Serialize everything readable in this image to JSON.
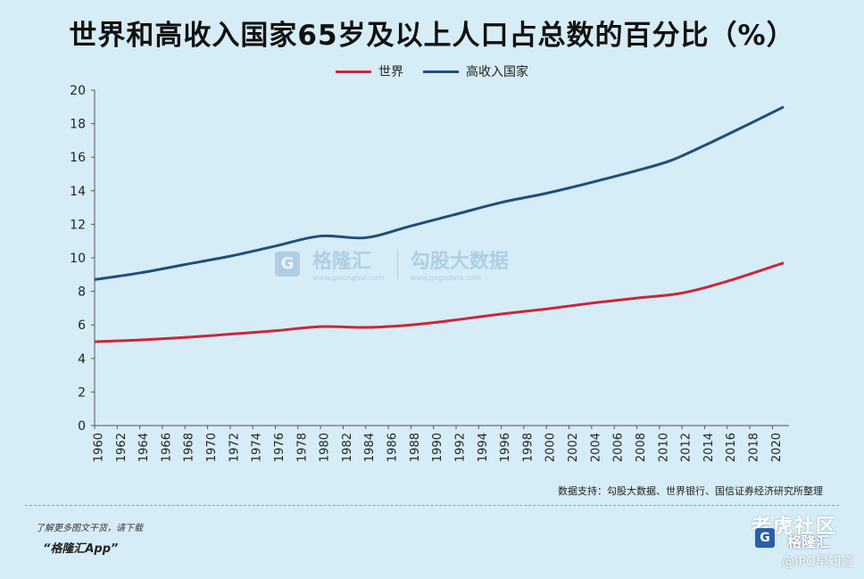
{
  "title": "世界和高收入国家65岁及以上人口占总数的百分比（%）",
  "source": "数据支持：勾股大数据、世界银行、国信证券经济研究所整理",
  "footer": {
    "hint": "了解更多图文干货，请下载",
    "app": "“格隆汇App”"
  },
  "watermarks": {
    "center_brand": "格隆汇",
    "center_brand_url": "www.gelonghui.com",
    "center_data": "勾股大数据",
    "center_data_url": "www.gogudata.com",
    "community": "老虎社区",
    "logo": "格隆汇",
    "ipo": "@IPO早知道"
  },
  "colors": {
    "world": "#c8283a",
    "high_income": "#1f4e79",
    "background": "#d6ecf7"
  },
  "chart_data": {
    "type": "line",
    "title": "世界和高收入国家65岁及以上人口占总数的百分比（%）",
    "xlabel": "",
    "ylabel": "",
    "ylim": [
      0,
      20
    ],
    "yticks": [
      "0",
      "2",
      "4",
      "6",
      "8",
      "10",
      "12",
      "14",
      "16",
      "18",
      "20"
    ],
    "xlim": [
      1960,
      2021
    ],
    "xticks": [
      "1960",
      "1962",
      "1964",
      "1966",
      "1968",
      "1970",
      "1972",
      "1974",
      "1976",
      "1978",
      "1980",
      "1982",
      "1984",
      "1986",
      "1988",
      "1990",
      "1992",
      "1994",
      "1996",
      "1998",
      "2000",
      "2002",
      "2004",
      "2006",
      "2008",
      "2010",
      "2012",
      "2014",
      "2016",
      "2018",
      "2020"
    ],
    "grid": false,
    "legend_position": "top-center",
    "series": [
      {
        "name": "世界",
        "x": [
          1960,
          1964,
          1968,
          1972,
          1976,
          1980,
          1984,
          1988,
          1992,
          1996,
          2000,
          2004,
          2008,
          2012,
          2016,
          2021
        ],
        "values": [
          5.0,
          5.1,
          5.25,
          5.45,
          5.65,
          5.9,
          5.85,
          6.0,
          6.3,
          6.65,
          6.95,
          7.3,
          7.6,
          7.9,
          8.6,
          9.7
        ]
      },
      {
        "name": "高收入国家",
        "x": [
          1960,
          1964,
          1968,
          1972,
          1976,
          1980,
          1984,
          1988,
          1992,
          1996,
          2000,
          2004,
          2008,
          2011,
          2014,
          2018,
          2021
        ],
        "values": [
          8.7,
          9.1,
          9.6,
          10.1,
          10.7,
          11.3,
          11.2,
          11.9,
          12.6,
          13.3,
          13.85,
          14.5,
          15.2,
          15.8,
          16.7,
          18.0,
          19.0
        ]
      }
    ]
  }
}
